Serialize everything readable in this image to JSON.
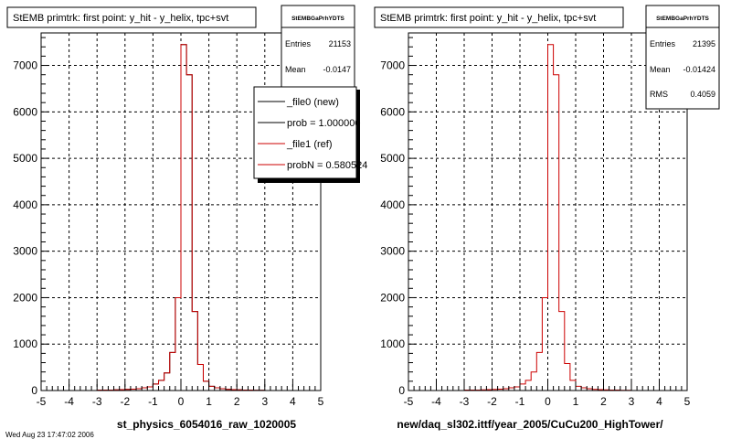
{
  "colors": {
    "ref": "#cc0000",
    "new": "#000000",
    "grid": "#000000"
  },
  "stamp": "Wed Aug 23 17:47:02 2006",
  "chart_data": [
    {
      "type": "histogram",
      "title": "StEMB primtrk: first point: y_hit - y_helix, tpc+svt",
      "xlabel": "st_physics_6054016_raw_1020005",
      "ylabel": "",
      "xlim": [
        -5,
        5
      ],
      "ylim": [
        0,
        7700
      ],
      "xticks": [
        "-5",
        "-4",
        "-3",
        "-2",
        "-1",
        "0",
        "1",
        "2",
        "3",
        "4",
        "5"
      ],
      "yticks": [
        {
          "v": 0,
          "t": "0"
        },
        {
          "v": 1000,
          "t": "1000"
        },
        {
          "v": 2000,
          "t": "2000"
        },
        {
          "v": 3000,
          "t": "3000"
        },
        {
          "v": 4000,
          "t": "4000"
        },
        {
          "v": 5000,
          "t": "5000"
        },
        {
          "v": 6000,
          "t": "6000"
        },
        {
          "v": 7000,
          "t": "7000"
        }
      ],
      "grid": true,
      "bin_edges_start": -5,
      "bin_width": 0.2,
      "series": [
        {
          "name": "_file0 (new)",
          "color": "#000000",
          "values": [
            0,
            0,
            0,
            0,
            0,
            0,
            0,
            0,
            0,
            0,
            10,
            10,
            10,
            15,
            20,
            25,
            30,
            40,
            60,
            80,
            140,
            220,
            380,
            820,
            2000,
            7450,
            6800,
            1700,
            560,
            200,
            90,
            60,
            40,
            25,
            20,
            15,
            10,
            10,
            5,
            5,
            0,
            0,
            0,
            0,
            0,
            0,
            0,
            0,
            0,
            0
          ]
        },
        {
          "name": "_file1 (ref)",
          "color": "#cc0000",
          "values": [
            0,
            0,
            0,
            0,
            0,
            0,
            0,
            0,
            0,
            0,
            10,
            10,
            10,
            15,
            20,
            25,
            30,
            40,
            60,
            80,
            140,
            220,
            380,
            820,
            2000,
            7450,
            6800,
            1700,
            560,
            200,
            90,
            60,
            40,
            25,
            20,
            15,
            10,
            10,
            5,
            5,
            0,
            0,
            0,
            0,
            0,
            0,
            0,
            0,
            0,
            0
          ]
        }
      ],
      "stats": {
        "name": "StEMBGaPrhYDTS",
        "entries": "21153",
        "mean": "-0.0147"
      },
      "legend": {
        "placement": "top-right",
        "entries": [
          {
            "label": "_file0 (new)",
            "color": "#000000"
          },
          {
            "label": "prob = 1.000000",
            "color": "#000000"
          },
          {
            "label": "_file1 (ref)",
            "color": "#cc0000"
          },
          {
            "label": "probN = 0.580524",
            "color": "#cc0000"
          }
        ]
      }
    },
    {
      "type": "histogram",
      "title": "StEMB primtrk: first point: y_hit - y_helix, tpc+svt",
      "xlabel": "new/daq_sl302.ittf/year_2005/CuCu200_HighTower/",
      "ylabel": "",
      "xlim": [
        -5,
        5
      ],
      "ylim": [
        0,
        7700
      ],
      "xticks": [
        "-5",
        "-4",
        "-3",
        "-2",
        "-1",
        "0",
        "1",
        "2",
        "3",
        "4",
        "5"
      ],
      "yticks": [
        {
          "v": 0,
          "t": "0"
        },
        {
          "v": 1000,
          "t": "1000"
        },
        {
          "v": 2000,
          "t": "2000"
        },
        {
          "v": 3000,
          "t": "3000"
        },
        {
          "v": 4000,
          "t": "4000"
        },
        {
          "v": 5000,
          "t": "5000"
        },
        {
          "v": 6000,
          "t": "6000"
        },
        {
          "v": 7000,
          "t": "7000"
        }
      ],
      "grid": true,
      "bin_edges_start": -5,
      "bin_width": 0.2,
      "series": [
        {
          "name": "ref",
          "color": "#cc0000",
          "values": [
            0,
            0,
            0,
            0,
            0,
            0,
            0,
            0,
            0,
            0,
            10,
            10,
            10,
            15,
            20,
            25,
            30,
            40,
            60,
            80,
            140,
            220,
            400,
            820,
            2000,
            7450,
            6800,
            1700,
            580,
            220,
            90,
            60,
            40,
            25,
            20,
            15,
            10,
            10,
            5,
            5,
            0,
            0,
            0,
            0,
            0,
            0,
            0,
            0,
            0,
            0
          ]
        }
      ],
      "stats": {
        "name": "StEMBGaPrhYDTS",
        "entries": "21395",
        "mean": "-0.01424",
        "rms": "0.4059"
      }
    }
  ]
}
